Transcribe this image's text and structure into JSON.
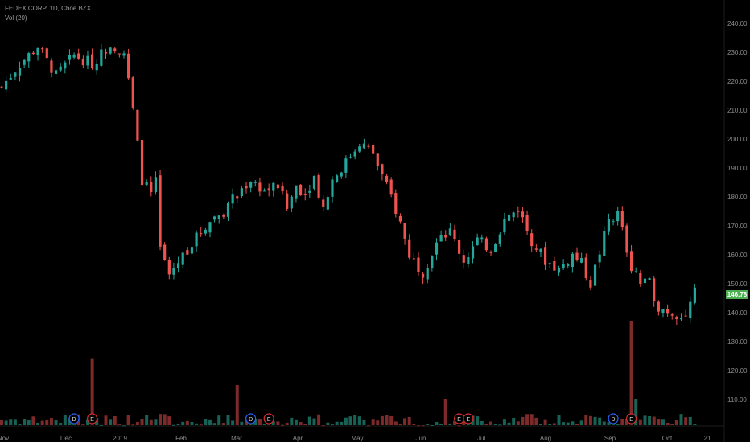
{
  "legend": {
    "symbol": "FEDEX CORP, 1D, Cboe BZX",
    "volume": "Vol (20)"
  },
  "current_price": "146.78",
  "colors": {
    "background": "#000000",
    "up": "#26a69a",
    "down": "#ef5350",
    "up_volume": "#1b6b5e",
    "down_volume": "#8a2f2f",
    "axis_text": "#8c8c8c",
    "price_line": "#4caf50",
    "badge_d": "#2962ff",
    "badge_e": "#d32f2f"
  },
  "chart_data": {
    "type": "candlestick",
    "y_axis": {
      "ticks": [
        240,
        230,
        220,
        210,
        200,
        190,
        180,
        170,
        160,
        150,
        140,
        130,
        120,
        110
      ],
      "tick_labels": [
        "240.00",
        "230.00",
        "220.00",
        "210.00",
        "200.00",
        "190.00",
        "180.00",
        "170.00",
        "160.00",
        "150.00",
        "140.00",
        "130.00",
        "120.00",
        "110.00"
      ],
      "range": [
        102,
        244
      ]
    },
    "x_axis": {
      "labels": [
        "Nov",
        "Dec",
        "2019",
        "Feb",
        "Mar",
        "Apr",
        "May",
        "Jun",
        "Jul",
        "Aug",
        "Sep",
        "Oct",
        "21"
      ]
    },
    "price_path": [
      [
        0,
        218
      ],
      [
        4,
        226
      ],
      [
        8,
        232
      ],
      [
        12,
        222
      ],
      [
        16,
        229
      ],
      [
        20,
        226
      ],
      [
        24,
        233
      ],
      [
        27,
        230
      ],
      [
        29,
        210
      ],
      [
        31,
        186
      ],
      [
        33,
        181
      ],
      [
        34,
        185
      ],
      [
        35,
        162
      ],
      [
        37,
        153
      ],
      [
        40,
        160
      ],
      [
        43,
        166
      ],
      [
        46,
        172
      ],
      [
        49,
        175
      ],
      [
        52,
        181
      ],
      [
        55,
        186
      ],
      [
        58,
        182
      ],
      [
        61,
        184
      ],
      [
        63,
        176
      ],
      [
        65,
        184
      ],
      [
        67,
        181
      ],
      [
        69,
        187
      ],
      [
        71,
        176
      ],
      [
        73,
        186
      ],
      [
        76,
        192
      ],
      [
        79,
        199
      ],
      [
        82,
        195
      ],
      [
        84,
        187
      ],
      [
        86,
        180
      ],
      [
        88,
        171
      ],
      [
        90,
        160
      ],
      [
        93,
        154
      ],
      [
        96,
        164
      ],
      [
        99,
        168
      ],
      [
        102,
        158
      ],
      [
        105,
        165
      ],
      [
        108,
        162
      ],
      [
        111,
        172
      ],
      [
        114,
        176
      ],
      [
        117,
        165
      ],
      [
        120,
        158
      ],
      [
        123,
        155
      ],
      [
        126,
        160
      ],
      [
        128,
        157
      ],
      [
        130,
        150
      ],
      [
        132,
        161
      ],
      [
        134,
        172
      ],
      [
        136,
        174
      ],
      [
        139,
        156
      ],
      [
        141,
        150
      ],
      [
        143,
        150
      ],
      [
        145,
        142
      ],
      [
        148,
        140
      ],
      [
        151,
        139
      ],
      [
        153,
        147
      ]
    ],
    "volume": {
      "baseline": 100,
      "spikes": [
        {
          "x": 20,
          "value": 124
        },
        {
          "x": 52,
          "value": 115
        },
        {
          "x": 98,
          "value": 110
        },
        {
          "x": 139,
          "value": 137
        },
        {
          "x": 140,
          "value": 110
        }
      ]
    },
    "events": [
      {
        "label": "D",
        "x": 16
      },
      {
        "label": "E",
        "x": 20
      },
      {
        "label": "D",
        "x": 55
      },
      {
        "label": "E",
        "x": 59
      },
      {
        "label": "E",
        "x": 101
      },
      {
        "label": "E",
        "x": 103
      },
      {
        "label": "D",
        "x": 135
      },
      {
        "label": "E",
        "x": 139
      }
    ],
    "current_price": 146.78
  }
}
